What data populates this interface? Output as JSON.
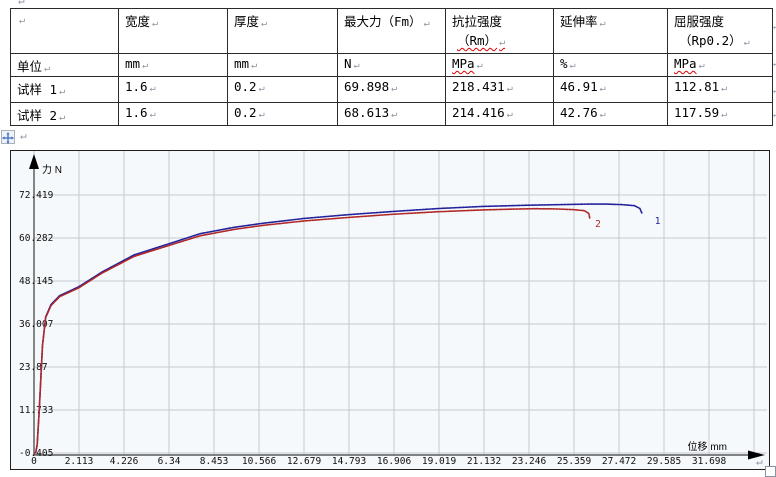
{
  "marks": {
    "pilcrow": "↵"
  },
  "table": {
    "header": [
      {
        "lines": [
          ""
        ]
      },
      {
        "lines": [
          "宽度"
        ]
      },
      {
        "lines": [
          "厚度"
        ]
      },
      {
        "lines": [
          "最大力（Fm）"
        ]
      },
      {
        "lines": [
          "抗拉强度",
          "（Rm）"
        ],
        "squiggle_line": 1
      },
      {
        "lines": [
          "延伸率"
        ]
      },
      {
        "lines": [
          "屈服强度",
          "（Rp0.2）"
        ]
      }
    ],
    "rows": [
      {
        "cells": [
          {
            "t": "单位"
          },
          {
            "t": "mm"
          },
          {
            "t": "mm"
          },
          {
            "t": "N"
          },
          {
            "t": "MPa",
            "sq": true
          },
          {
            "t": "%"
          },
          {
            "t": "MPa",
            "sq": true
          }
        ]
      },
      {
        "cells": [
          {
            "t": "试样 1"
          },
          {
            "t": "1.6"
          },
          {
            "t": "0.2"
          },
          {
            "t": "69.898"
          },
          {
            "t": "218.431"
          },
          {
            "t": "46.91"
          },
          {
            "t": "112.81"
          }
        ]
      },
      {
        "cells": [
          {
            "t": "试样 2"
          },
          {
            "t": "1.6"
          },
          {
            "t": "0.2"
          },
          {
            "t": "68.613"
          },
          {
            "t": "214.416"
          },
          {
            "t": "42.76"
          },
          {
            "t": "117.59"
          }
        ]
      }
    ]
  },
  "chart_data": {
    "type": "line",
    "title": "",
    "xlabel": "位移 mm",
    "ylabel": "力 N",
    "xlim": [
      0,
      34.4
    ],
    "ylim": [
      -1.6,
      86
    ],
    "grid": true,
    "x_ticks": [
      0,
      2.113,
      4.226,
      6.34,
      8.453,
      10.566,
      12.679,
      14.793,
      16.906,
      19.019,
      21.132,
      23.246,
      25.359,
      27.472,
      29.585,
      31.698
    ],
    "x_tick_labels": [
      "0",
      "2.113",
      "4.226",
      "6.34",
      "8.453",
      "10.566",
      "12.679",
      "14.793",
      "16.906",
      "19.019",
      "21.132",
      "23.246",
      "25.359",
      "27.472",
      "29.585",
      "31.698"
    ],
    "y_ticks": [
      72.419,
      60.282,
      48.145,
      36.007,
      23.87,
      11.733,
      -0.405
    ],
    "y_tick_labels": [
      "72.419",
      "60.282",
      "48.145",
      "36.007",
      "23.87",
      "11.733",
      "-0.405"
    ],
    "colors": {
      "grid": "#c6cbd1",
      "axis": "#3a3a3a",
      "background": "#f6f9fb"
    },
    "series": [
      {
        "name": "1",
        "color": "#22229b",
        "max_force": 69.898,
        "label_pos": [
          29.15,
          64.3
        ],
        "points": [
          [
            0.03,
            -0.4
          ],
          [
            0.08,
            -0.3
          ],
          [
            0.15,
            2
          ],
          [
            0.25,
            12
          ],
          [
            0.4,
            30
          ],
          [
            0.55,
            38
          ],
          [
            0.8,
            41.5
          ],
          [
            1.2,
            44
          ],
          [
            2.1,
            46.5
          ],
          [
            3.2,
            50.7
          ],
          [
            4.7,
            55.5
          ],
          [
            6.3,
            58.6
          ],
          [
            7.8,
            61.5
          ],
          [
            9.4,
            63.3
          ],
          [
            10.7,
            64.4
          ],
          [
            12.7,
            65.8
          ],
          [
            14.8,
            66.9
          ],
          [
            16.9,
            67.8
          ],
          [
            19.0,
            68.6
          ],
          [
            21.1,
            69.2
          ],
          [
            23.2,
            69.55
          ],
          [
            25.0,
            69.75
          ],
          [
            26.0,
            69.85
          ],
          [
            26.9,
            69.85
          ],
          [
            27.6,
            69.7
          ],
          [
            28.2,
            69.4
          ],
          [
            28.45,
            68.6
          ],
          [
            28.55,
            67.2
          ]
        ]
      },
      {
        "name": "2",
        "color": "#b02828",
        "max_force": 68.613,
        "label_pos": [
          26.35,
          63.4
        ],
        "points": [
          [
            0.03,
            -0.4
          ],
          [
            0.08,
            -0.3
          ],
          [
            0.15,
            2
          ],
          [
            0.25,
            12
          ],
          [
            0.4,
            30
          ],
          [
            0.55,
            37.8
          ],
          [
            0.8,
            41.2
          ],
          [
            1.2,
            43.7
          ],
          [
            2.1,
            46.2
          ],
          [
            3.2,
            50.4
          ],
          [
            4.7,
            55.1
          ],
          [
            6.3,
            58.1
          ],
          [
            7.8,
            60.9
          ],
          [
            9.4,
            62.7
          ],
          [
            10.7,
            63.8
          ],
          [
            12.7,
            65.1
          ],
          [
            14.8,
            66.1
          ],
          [
            16.9,
            67.0
          ],
          [
            19.0,
            67.7
          ],
          [
            21.1,
            68.2
          ],
          [
            22.5,
            68.45
          ],
          [
            23.5,
            68.55
          ],
          [
            24.5,
            68.5
          ],
          [
            25.3,
            68.3
          ],
          [
            25.85,
            68.0
          ],
          [
            26.05,
            67.2
          ],
          [
            26.1,
            65.7
          ]
        ]
      }
    ]
  }
}
